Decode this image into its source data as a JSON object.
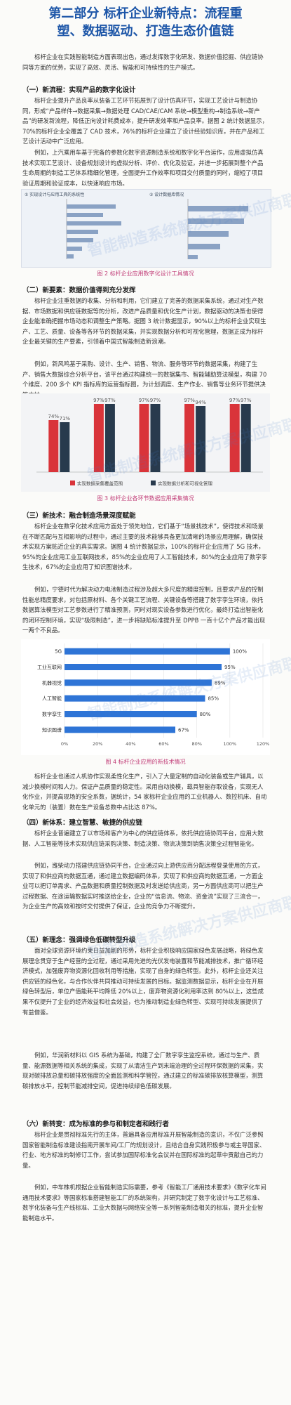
{
  "title": {
    "line1": "第二部分 标杆企业新特点：流程重",
    "line2": "塑、数据驱动、打造生态价值链"
  },
  "intro": "标杆企业在实践智能制造方面表现出色，通过发挥数字化研发、数据价值挖掘、供应链协同等方面的优势，实现了高效、灵活、智能和可持续性的生产模式。",
  "s1": {
    "heading": "（一）新流程：实现产品的数字化设计",
    "p1": "标杆企业提升产品良率从装备工艺环节拓展到了设计仿真环节，实现工艺设计与制造协同，形成“产品样件→数据采集→数据处理 CAD/CAE/CAM 系统→模型重构→制造系统→新产品”的研发新流程，降低正向设计耗费成本，提升研发效率和产品良率。据图 2 统计数据显示，70%的标杆企业全覆盖了 CAD 技术，76%的标杆企业建立了设计经验知识库，并在产品和工艺设计活动中广泛应用。",
    "p2": "例如，上汽乘用车基于完备的参数化数字资源制造系统和数字化平台运作，应用虚拟仿真技术实现工艺设计、设备规划设计的虚拟分析、评价、优化及验证，并进一步拓展到整个产品生命周期的制造工艺体系精细化管理，全面提升工作效率和项目交付质量的同时，缩短了项目验证周期和验证成本，以快速响应市场。"
  },
  "fig2": {
    "caption": "图 2 标杆企业应用数字化设计工具情况",
    "left_title": "① 实现设计与应用工具的系统性",
    "right_title": "② 设计数据库情况"
  },
  "s2": {
    "heading": "（二）新要素：数据价值得到充分发挥",
    "p1": "标杆企业注重数据的收集、分析和利用，它们建立了完善的数据采集系统，通过对生产数据、市场数据和供应链数据等的分析，改进产品质量和优化生产计划，数据驱动的决策也使得企业能准确把握市场动态和调整生产策略。据图 3 统计数据显示，90%以上的标杆企业实现生产、工艺、质量、设备等各环节的数据采集，并实现数据分析和可视化管理，数据正成为标杆企业最关键的生产要素，引领着中国式智能制造新浪潮。",
    "p2": "例如，新风鸣基于采购、设计、生产、销售、物流、服务等环节的数据采集，构建了生产、销售大数据综合分析平台，该平台通过构建统一的数据集市、智能辅助算法模型，构建 70 个维度、200 多个 KPI 指标库的运营指标图，为计划调度、生产作业、销售等业务环节提供决策支持。"
  },
  "chart3": {
    "type": "bar",
    "title": "",
    "categories": [
      "",
      "",
      "",
      "",
      ""
    ],
    "series": [
      {
        "name": "实现数据采集覆盖范围",
        "values": [
          74,
          97,
          97,
          97,
          97
        ]
      },
      {
        "name": "实现数据分析和可视化管理",
        "values": [
          71,
          97,
          97,
          94,
          97
        ]
      }
    ],
    "ylim": [
      0,
      100
    ],
    "colors": [
      "#d9343a",
      "#283a4d"
    ]
  },
  "fig3": {
    "caption": "图 3 标杆企业各环节数据应用采集情况"
  },
  "s3": {
    "heading": "（三）新技术：融合制造场景深度赋能",
    "p1": "标杆企业在数字化技术应用方面处于领先地位，它们基于“场景找技术”，使得技术和场景在不断匹配与互相影响的过程中，通过主要的技术能够具备更加清晰的场景应用理解，确保技术实现方案贴近企业的真实需求。据图 4 统计数据显示，100%的标杆企业应用了 5G 技术，95%的企业应用工业互联网技术，85%的企业应用了人工智能技术，80%的企业应用了数字孪生技术，67%的企业应用了知识图谱技术。",
    "p2": "例如，宁德时代为解决动力电池制造过程涉及超大多尺度的精度控制，且要求产品的控制性能总精度要求，对包括原材料、各个关键工艺流程、关键设备等搭建了数字孪生环境，依托数据算法模型对工艺参数进行了精准预测，同时对现实设备参数进行优化，最终打造出智能化的闭环控制环境，实现“极限制造”，进一步将缺陷标准提升至 DPPB 一百十亿个产品才能出现一两个不良品。"
  },
  "chart4": {
    "type": "bar",
    "title": "",
    "categories": [
      "5G",
      "工业互联网",
      "机器视觉",
      "人工智能",
      "数字孪生",
      "知识图谱"
    ],
    "values": [
      100,
      95,
      89,
      85,
      80,
      67
    ],
    "labels": [
      "100%",
      "95%",
      "89%",
      "85%",
      "80%",
      "67%"
    ],
    "xticks": [
      "0%",
      "20%",
      "40%",
      "60%",
      "80%",
      "100%",
      "120%"
    ],
    "xlim": [
      0,
      120
    ],
    "color": "#2e74d6"
  },
  "fig4": {
    "caption": "图 4 标杆企业应用的新技术情况"
  },
  "p4b": "标杆企业也通过人机协作实现柔性化生产，引入了大量定制的自动化装备或生产辅具，以减少换模时间和人力。保证产品质量的稳定性。采用自动换模，载具智能存取设备，实现无人化作业，并提高现场的安全系数，据统计，54 家标杆企业应用的工业机器人、数控机床、自动化单元的（装置）数在生产设备总数中占比达 87%。",
  "s4": {
    "heading": "（四）新体系：建立智慧、敏捷的供应链",
    "p1": "标杆企业普遍建立了以市场和客户为中心的供应链体系，依托供应链协同平台，应用大数据、人工智能等技术实现供应链采购决策、制造决策、物流决策到销售决策全过程智能化。",
    "p2": "例如，潍柴动力搭建供应链协同平台，企业通过向上游供应商分配远程登录使用的方式，实现了和供应商的数据互通，通过建立数据编码体系，实现了和供应商的数据互通，一方面企业可以把订单需求、产品数据和质量控制数据及时发送给供应商，另一方面供应商可以把生产过程数据、在途运输数据实时推送给企业，企业的“信息流、物流、资金流”实现了三流合一，为企业生产的高效和按时交付提供了保证，企业的竞争力不断提升。"
  },
  "s5": {
    "heading": "（五）新理念：强调绿色低碳转型升级",
    "p1": "面对全球资源环境约束日益加剧的形势，标杆企业积极响应国家绿色发展战略，将绿色发展理念贯穿于生产经营的全过程，通过采用先进的光伏发电装置和节能减排技术，推广循环经济模式，加强废弃物资源化回收利用等措施，实现了自身的绿色转型。此外，标杆企业还关注供应链的绿色化，与合作伙伴共同推动可持续发展的目标。据监测数据显示，标杆企业在开展绿色转型后，单位产值能耗平均降低 20%以上，废弃物资源化利用率达到 80%以上，这些成果不仅提升了企业的经济效益和社会效益，也为推动制造业绿色转型、实现可持续发展提供了有益借鉴。",
    "p2": "例如，华润新材料以 GIS 系统为基础，构建了全厂数字孪生监控系统，通过与生产、质量、能源数据等相关系统的集成，实现了从清洁生产到末端治理的全过程环保数据的采集，实现对碳排放总量和碳排放强度的全面监测和科学管控，通过建立的标准碳排放核算模型，测算碳排放水平，控制节能减排空间，促进持续绿色低碳发展。"
  },
  "s6": {
    "heading": "（六）新转变：成为标准的参与和制定者和践行者",
    "p1": "标杆企业是贯彻标准先行的主体，普遍具备应用标准开展智能制造的意识，不仅广泛参照国家智能制造标准建设指南开展车间/工厂的规划设计，且结合自身实践积极参与或主导国家、行业、地方标准的制修订工作，尝试参加国际标准化会议并在国际标准的起草中贡献自己的力量。",
    "p2": "例如，中车株机根据企业智能制造实际需要，参考《智能工厂通用技术要求》《数字化车间通用技术要求》等国家标准搭建智能工厂的系统架构，并研究制定了数字化设计与工艺标准、数字化装备与生产线标准、工业大数据与网络安全等一系列智能制造相关的标准，提升企业智能制造水平。"
  },
  "watermark": "智能制造系统解决方案供应商联盟"
}
